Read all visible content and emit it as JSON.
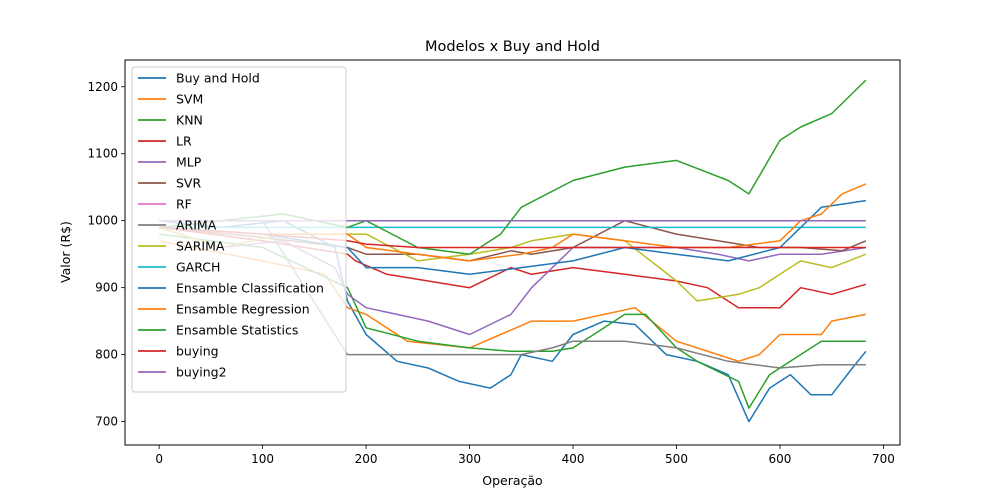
{
  "chart_data": {
    "type": "line",
    "title": "Modelos x Buy and Hold",
    "xlabel": "Operação",
    "ylabel": "Valor (R$)",
    "xlim": [
      -33,
      716
    ],
    "ylim": [
      665,
      1240
    ],
    "xticks": [
      0,
      100,
      200,
      300,
      400,
      500,
      600,
      700
    ],
    "yticks": [
      700,
      800,
      900,
      1000,
      1100,
      1200
    ],
    "legend_position": "upper left",
    "grid": false,
    "series": [
      {
        "name": "Buy and Hold",
        "color": "#1f77b4",
        "x": [
          0,
          60,
          120,
          170,
          182,
          200,
          230,
          260,
          290,
          320,
          340,
          350,
          380,
          400,
          430,
          460,
          490,
          520,
          550,
          570,
          590,
          610,
          630,
          650,
          670,
          683
        ],
        "y": [
          1000,
          990,
          1000,
          960,
          880,
          830,
          790,
          780,
          760,
          750,
          770,
          800,
          790,
          830,
          850,
          845,
          800,
          790,
          770,
          700,
          750,
          770,
          740,
          740,
          780,
          805
        ]
      },
      {
        "name": "SVM",
        "color": "#ff7f0e",
        "x": [
          0,
          100,
          160,
          182,
          200,
          240,
          300,
          330,
          360,
          400,
          460,
          500,
          540,
          560,
          580,
          600,
          640,
          650,
          683
        ],
        "y": [
          970,
          940,
          920,
          870,
          860,
          820,
          810,
          830,
          850,
          850,
          870,
          820,
          800,
          790,
          800,
          830,
          830,
          850,
          860
        ]
      },
      {
        "name": "KNN",
        "color": "#2ca02c",
        "x": [
          0,
          100,
          182,
          200,
          250,
          300,
          340,
          360,
          380,
          400,
          450,
          470,
          500,
          520,
          560,
          570,
          590,
          610,
          640,
          683
        ],
        "y": [
          980,
          960,
          900,
          840,
          820,
          810,
          805,
          805,
          805,
          810,
          860,
          860,
          810,
          790,
          760,
          720,
          770,
          790,
          820,
          820
        ]
      },
      {
        "name": "LR",
        "color": "#d62728",
        "x": [
          0,
          100,
          182,
          190,
          220,
          260,
          300,
          340,
          360,
          400,
          450,
          500,
          530,
          560,
          600,
          620,
          650,
          683
        ],
        "y": [
          990,
          970,
          950,
          940,
          920,
          910,
          900,
          930,
          920,
          930,
          920,
          910,
          900,
          870,
          870,
          900,
          890,
          905
        ]
      },
      {
        "name": "MLP",
        "color": "#9467bd",
        "x": [
          0,
          60,
          120,
          170,
          182,
          200,
          230,
          260,
          300,
          340,
          360,
          400,
          450,
          500,
          540,
          570,
          600,
          640,
          683
        ],
        "y": [
          990,
          960,
          970,
          930,
          890,
          870,
          860,
          850,
          830,
          860,
          900,
          960,
          960,
          960,
          950,
          940,
          950,
          950,
          960
        ]
      },
      {
        "name": "SVR",
        "color": "#8c564b",
        "x": [
          0,
          100,
          182,
          200,
          250,
          300,
          340,
          360,
          400,
          450,
          500,
          540,
          580,
          620,
          660,
          683
        ],
        "y": [
          990,
          975,
          960,
          950,
          950,
          940,
          955,
          950,
          960,
          1000,
          980,
          970,
          960,
          960,
          955,
          970
        ]
      },
      {
        "name": "RF",
        "color": "#e377c2",
        "x": [
          0,
          100,
          182,
          250,
          350,
          450,
          550,
          683
        ],
        "y": [
          1000,
          1000,
          1000,
          1000,
          1000,
          1000,
          1000,
          1000
        ]
      },
      {
        "name": "ARIMA",
        "color": "#7f7f7f",
        "x": [
          0,
          100,
          182,
          250,
          300,
          350,
          380,
          400,
          450,
          500,
          550,
          600,
          640,
          683
        ],
        "y": [
          1000,
          1000,
          800,
          800,
          800,
          800,
          810,
          820,
          820,
          810,
          790,
          780,
          785,
          785
        ]
      },
      {
        "name": "SARIMA",
        "color": "#bcbd22",
        "x": [
          0,
          60,
          120,
          182,
          200,
          250,
          300,
          340,
          360,
          400,
          450,
          500,
          520,
          560,
          580,
          600,
          620,
          650,
          683
        ],
        "y": [
          990,
          960,
          980,
          980,
          980,
          940,
          950,
          960,
          970,
          980,
          970,
          910,
          880,
          890,
          900,
          920,
          940,
          930,
          950
        ]
      },
      {
        "name": "GARCH",
        "color": "#17becf",
        "x": [
          0,
          100,
          182,
          250,
          350,
          450,
          550,
          683
        ],
        "y": [
          990,
          990,
          990,
          990,
          990,
          990,
          990,
          990
        ]
      },
      {
        "name": "Ensamble Classification",
        "color": "#1f77b4",
        "x": [
          0,
          100,
          182,
          200,
          250,
          300,
          350,
          400,
          450,
          500,
          550,
          600,
          640,
          683
        ],
        "y": [
          990,
          980,
          960,
          930,
          930,
          920,
          930,
          940,
          960,
          950,
          940,
          960,
          1020,
          1030
        ]
      },
      {
        "name": "Ensamble Regression",
        "color": "#ff7f0e",
        "x": [
          0,
          100,
          182,
          200,
          250,
          300,
          350,
          380,
          400,
          450,
          500,
          550,
          600,
          620,
          640,
          660,
          683
        ],
        "y": [
          990,
          980,
          980,
          960,
          950,
          940,
          950,
          960,
          980,
          970,
          960,
          960,
          970,
          1000,
          1010,
          1040,
          1055
        ]
      },
      {
        "name": "Ensamble Statistics",
        "color": "#2ca02c",
        "x": [
          0,
          60,
          120,
          182,
          200,
          250,
          300,
          330,
          350,
          400,
          450,
          500,
          550,
          570,
          600,
          620,
          650,
          683
        ],
        "y": [
          990,
          1000,
          1010,
          990,
          1000,
          960,
          950,
          980,
          1020,
          1060,
          1080,
          1090,
          1060,
          1040,
          1120,
          1140,
          1160,
          1210
        ]
      },
      {
        "name": "buying",
        "color": "#d62728",
        "x": [
          0,
          100,
          182,
          200,
          250,
          300,
          350,
          400,
          450,
          500,
          550,
          600,
          640,
          683
        ],
        "y": [
          990,
          980,
          970,
          965,
          960,
          960,
          960,
          960,
          960,
          960,
          960,
          960,
          960,
          960
        ]
      },
      {
        "name": "buying2",
        "color": "#9467bd",
        "x": [
          0,
          100,
          182,
          683
        ],
        "y": [
          1000,
          1000,
          1000,
          1000
        ]
      }
    ]
  }
}
